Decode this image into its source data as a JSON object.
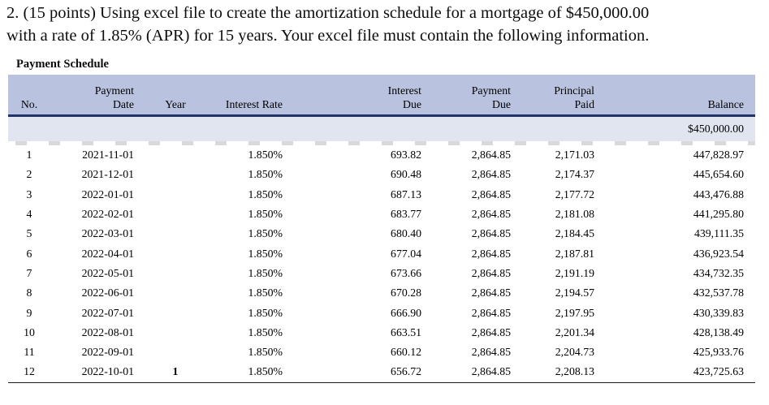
{
  "question": {
    "line1": "2. (15 points) Using excel file to create the amortization schedule for a mortgage of $450,000.00",
    "line2": "with a rate of 1.85% (APR) for 15 years. Your excel file must contain the following information."
  },
  "schedule": {
    "section_label": "Payment Schedule",
    "headers": {
      "no": "No.",
      "payment_date_l1": "Payment",
      "payment_date_l2": "Date",
      "year": "Year",
      "interest_rate": "Interest Rate",
      "interest_due_l1": "Interest",
      "interest_due_l2": "Due",
      "payment_due_l1": "Payment",
      "payment_due_l2": "Due",
      "principal_paid_l1": "Principal",
      "principal_paid_l2": "Paid",
      "balance": "Balance"
    },
    "opening_balance": "$450,000.00",
    "rows": [
      {
        "no": "1",
        "date": "2021-11-01",
        "year": "",
        "rate": "1.850%",
        "interest_due": "693.82",
        "payment_due": "2,864.85",
        "principal_paid": "2,171.03",
        "balance": "447,828.97"
      },
      {
        "no": "2",
        "date": "2021-12-01",
        "year": "",
        "rate": "1.850%",
        "interest_due": "690.48",
        "payment_due": "2,864.85",
        "principal_paid": "2,174.37",
        "balance": "445,654.60"
      },
      {
        "no": "3",
        "date": "2022-01-01",
        "year": "",
        "rate": "1.850%",
        "interest_due": "687.13",
        "payment_due": "2,864.85",
        "principal_paid": "2,177.72",
        "balance": "443,476.88"
      },
      {
        "no": "4",
        "date": "2022-02-01",
        "year": "",
        "rate": "1.850%",
        "interest_due": "683.77",
        "payment_due": "2,864.85",
        "principal_paid": "2,181.08",
        "balance": "441,295.80"
      },
      {
        "no": "5",
        "date": "2022-03-01",
        "year": "",
        "rate": "1.850%",
        "interest_due": "680.40",
        "payment_due": "2,864.85",
        "principal_paid": "2,184.45",
        "balance": "439,111.35"
      },
      {
        "no": "6",
        "date": "2022-04-01",
        "year": "",
        "rate": "1.850%",
        "interest_due": "677.04",
        "payment_due": "2,864.85",
        "principal_paid": "2,187.81",
        "balance": "436,923.54"
      },
      {
        "no": "7",
        "date": "2022-05-01",
        "year": "",
        "rate": "1.850%",
        "interest_due": "673.66",
        "payment_due": "2,864.85",
        "principal_paid": "2,191.19",
        "balance": "434,732.35"
      },
      {
        "no": "8",
        "date": "2022-06-01",
        "year": "",
        "rate": "1.850%",
        "interest_due": "670.28",
        "payment_due": "2,864.85",
        "principal_paid": "2,194.57",
        "balance": "432,537.78"
      },
      {
        "no": "9",
        "date": "2022-07-01",
        "year": "",
        "rate": "1.850%",
        "interest_due": "666.90",
        "payment_due": "2,864.85",
        "principal_paid": "2,197.95",
        "balance": "430,339.83"
      },
      {
        "no": "10",
        "date": "2022-08-01",
        "year": "",
        "rate": "1.850%",
        "interest_due": "663.51",
        "payment_due": "2,864.85",
        "principal_paid": "2,201.34",
        "balance": "428,138.49"
      },
      {
        "no": "11",
        "date": "2022-09-01",
        "year": "",
        "rate": "1.850%",
        "interest_due": "660.12",
        "payment_due": "2,864.85",
        "principal_paid": "2,204.73",
        "balance": "425,933.76"
      },
      {
        "no": "12",
        "date": "2022-10-01",
        "year": "1",
        "rate": "1.850%",
        "interest_due": "656.72",
        "payment_due": "2,864.85",
        "principal_paid": "2,208.13",
        "balance": "423,725.63"
      }
    ]
  },
  "colors": {
    "header_bg": "#b9c3df",
    "opening_row_bg": "#e0e5f0",
    "header_rule": "#223264",
    "bottom_rule": "#1a1a1a"
  }
}
